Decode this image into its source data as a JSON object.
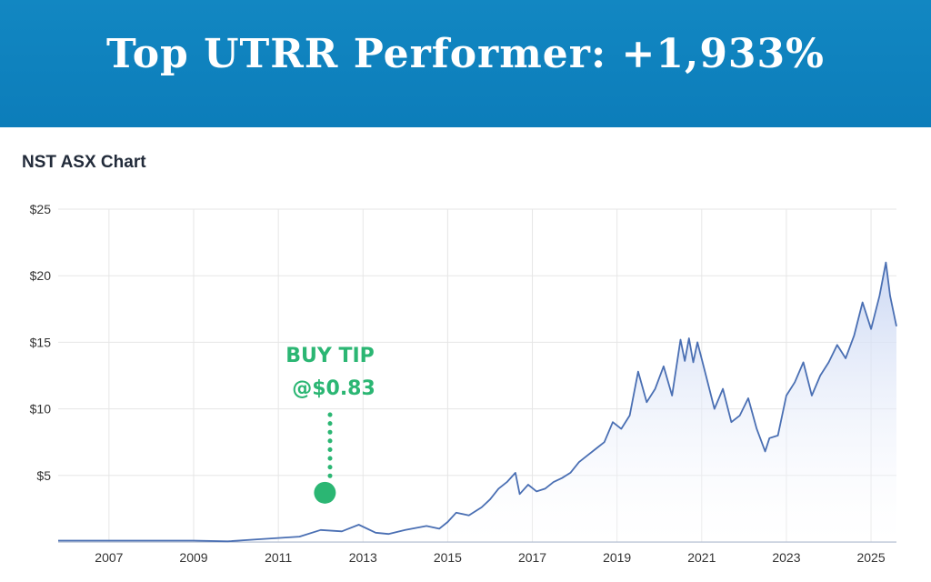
{
  "banner": {
    "title": "Top UTRR Performer: +1,933%"
  },
  "chart_title": "NST ASX Chart",
  "annotation": {
    "line1": "BUY TIP",
    "line2": "@$0.83",
    "marker_value": 3.7,
    "marker_date": 2012.1
  },
  "colors": {
    "banner": "#0c7dba",
    "line": "#4a6fb3",
    "fill_top": "#c9d6f3",
    "annotation": "#2bb673",
    "grid": "#e6e6e6",
    "axis_text": "#333333"
  },
  "chart_data": {
    "type": "area",
    "title": "NST ASX Chart",
    "xlabel": "",
    "ylabel": "",
    "xlim": [
      2005.8,
      2025.6
    ],
    "ylim": [
      0,
      25
    ],
    "x_ticks": [
      2007,
      2009,
      2011,
      2013,
      2015,
      2017,
      2019,
      2021,
      2023,
      2025
    ],
    "x_tick_labels": [
      "2007",
      "2009",
      "2011",
      "2013",
      "2015",
      "2017",
      "2019",
      "2021",
      "2023",
      "2025"
    ],
    "y_ticks": [
      5,
      10,
      15,
      20,
      25
    ],
    "y_tick_labels": [
      "$5",
      "$10",
      "$15",
      "$20",
      "$25"
    ],
    "grid": true,
    "series": [
      {
        "x": [
          2005.8,
          2007.0,
          2008.0,
          2009.0,
          2009.8,
          2010.5,
          2011.0,
          2011.5,
          2012.0,
          2012.5,
          2012.9,
          2013.3,
          2013.6,
          2014.0,
          2014.5,
          2014.8,
          2015.0,
          2015.2,
          2015.5,
          2015.8,
          2016.0,
          2016.2,
          2016.4,
          2016.6,
          2016.7,
          2016.9,
          2017.1,
          2017.3,
          2017.5,
          2017.7,
          2017.9,
          2018.1,
          2018.3,
          2018.5,
          2018.7,
          2018.9,
          2019.1,
          2019.3,
          2019.5,
          2019.7,
          2019.9,
          2020.1,
          2020.3,
          2020.5,
          2020.6,
          2020.7,
          2020.8,
          2020.9,
          2021.1,
          2021.3,
          2021.5,
          2021.7,
          2021.9,
          2022.1,
          2022.3,
          2022.5,
          2022.6,
          2022.8,
          2023.0,
          2023.2,
          2023.4,
          2023.6,
          2023.8,
          2024.0,
          2024.2,
          2024.4,
          2024.6,
          2024.8,
          2025.0,
          2025.2,
          2025.35,
          2025.45,
          2025.6
        ],
        "y": [
          0.1,
          0.1,
          0.1,
          0.1,
          0.05,
          0.2,
          0.3,
          0.4,
          0.9,
          0.8,
          1.3,
          0.7,
          0.6,
          0.9,
          1.2,
          1.0,
          1.5,
          2.2,
          2.0,
          2.6,
          3.2,
          4.0,
          4.5,
          5.2,
          3.6,
          4.3,
          3.8,
          4.0,
          4.5,
          4.8,
          5.2,
          6.0,
          6.5,
          7.0,
          7.5,
          9.0,
          8.5,
          9.5,
          12.8,
          10.5,
          11.5,
          13.2,
          11.0,
          15.2,
          13.6,
          15.3,
          13.5,
          15.0,
          12.5,
          10.0,
          11.5,
          9.0,
          9.5,
          10.8,
          8.5,
          6.8,
          7.8,
          8.0,
          11.0,
          12.0,
          13.5,
          11.0,
          12.5,
          13.5,
          14.8,
          13.8,
          15.5,
          18.0,
          16.0,
          18.5,
          21.0,
          18.5,
          16.2
        ]
      }
    ]
  }
}
